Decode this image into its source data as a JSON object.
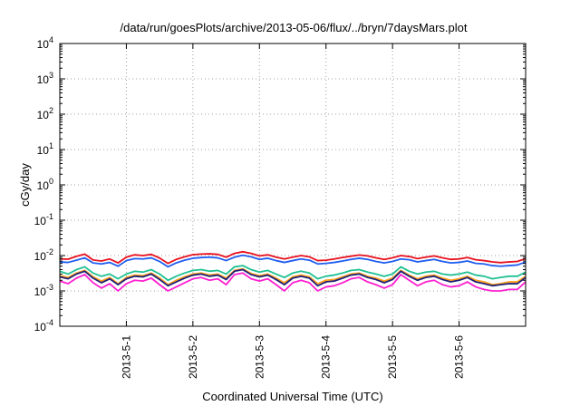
{
  "chart_data": {
    "type": "line",
    "title": "/data/run/goesPlots/archive/2013-05-06/flux/../bryn/7daysMars.plot",
    "xlabel": "Coordinated Universal Time (UTC)",
    "ylabel": "cGy/day",
    "y_scale": "log",
    "ylim": [
      0.0001,
      10000
    ],
    "xlim": [
      "2013-04-30T00:00",
      "2013-05-07T00:00"
    ],
    "grid": true,
    "legend": "none",
    "y_ticks": [
      {
        "base": "10",
        "exp": "-4"
      },
      {
        "base": "10",
        "exp": "-3"
      },
      {
        "base": "10",
        "exp": "-2"
      },
      {
        "base": "10",
        "exp": "-1"
      },
      {
        "base": "10",
        "exp": "0"
      },
      {
        "base": "10",
        "exp": "1"
      },
      {
        "base": "10",
        "exp": "2"
      },
      {
        "base": "10",
        "exp": "3"
      },
      {
        "base": "10",
        "exp": "4"
      }
    ],
    "x_ticks": [
      "2013-5-1",
      "2013-5-2",
      "2013-5-3",
      "2013-5-4",
      "2013-5-5",
      "2013-5-6"
    ],
    "x": [
      "2013-04-30T00:00",
      "2013-04-30T03:00",
      "2013-04-30T06:00",
      "2013-04-30T09:00",
      "2013-04-30T12:00",
      "2013-04-30T15:00",
      "2013-04-30T18:00",
      "2013-04-30T21:00",
      "2013-05-01T00:00",
      "2013-05-01T03:00",
      "2013-05-01T06:00",
      "2013-05-01T09:00",
      "2013-05-01T12:00",
      "2013-05-01T15:00",
      "2013-05-01T18:00",
      "2013-05-01T21:00",
      "2013-05-02T00:00",
      "2013-05-02T03:00",
      "2013-05-02T06:00",
      "2013-05-02T09:00",
      "2013-05-02T12:00",
      "2013-05-02T15:00",
      "2013-05-02T18:00",
      "2013-05-02T21:00",
      "2013-05-03T00:00",
      "2013-05-03T03:00",
      "2013-05-03T06:00",
      "2013-05-03T09:00",
      "2013-05-03T12:00",
      "2013-05-03T15:00",
      "2013-05-03T18:00",
      "2013-05-03T21:00",
      "2013-05-04T00:00",
      "2013-05-04T03:00",
      "2013-05-04T06:00",
      "2013-05-04T09:00",
      "2013-05-04T12:00",
      "2013-05-04T15:00",
      "2013-05-04T18:00",
      "2013-05-04T21:00",
      "2013-05-05T00:00",
      "2013-05-05T03:00",
      "2013-05-05T06:00",
      "2013-05-05T09:00",
      "2013-05-05T12:00",
      "2013-05-05T15:00",
      "2013-05-05T18:00",
      "2013-05-05T21:00",
      "2013-05-06T00:00",
      "2013-05-06T03:00",
      "2013-05-06T06:00",
      "2013-05-06T09:00",
      "2013-05-06T12:00",
      "2013-05-06T15:00",
      "2013-05-06T18:00",
      "2013-05-06T21:00",
      "2013-05-07T00:00"
    ],
    "series": [
      {
        "color": "#e8111e",
        "values": [
          0.008,
          0.0079,
          0.0095,
          0.011,
          0.0075,
          0.007,
          0.008,
          0.0062,
          0.009,
          0.0105,
          0.01,
          0.0108,
          0.0085,
          0.006,
          0.0078,
          0.0092,
          0.0106,
          0.011,
          0.0112,
          0.0108,
          0.009,
          0.0115,
          0.0128,
          0.0115,
          0.0098,
          0.0105,
          0.009,
          0.008,
          0.009,
          0.01,
          0.0092,
          0.0072,
          0.0074,
          0.008,
          0.0088,
          0.0096,
          0.0104,
          0.0098,
          0.0086,
          0.0078,
          0.0086,
          0.01,
          0.0094,
          0.0082,
          0.009,
          0.0098,
          0.0086,
          0.0078,
          0.008,
          0.0088,
          0.0076,
          0.0072,
          0.0066,
          0.0063,
          0.0066,
          0.0068,
          0.0082
        ]
      },
      {
        "color": "#1f5ef0",
        "values": [
          0.0066,
          0.0064,
          0.0074,
          0.0086,
          0.0062,
          0.0058,
          0.0064,
          0.005,
          0.0072,
          0.0082,
          0.008,
          0.0086,
          0.0068,
          0.0048,
          0.0062,
          0.0074,
          0.0084,
          0.0088,
          0.009,
          0.0086,
          0.0072,
          0.009,
          0.0102,
          0.0092,
          0.0078,
          0.0084,
          0.0072,
          0.0064,
          0.0072,
          0.008,
          0.0074,
          0.0058,
          0.006,
          0.0064,
          0.007,
          0.0078,
          0.0084,
          0.0078,
          0.0068,
          0.0062,
          0.0068,
          0.008,
          0.0076,
          0.0066,
          0.0072,
          0.0078,
          0.0068,
          0.0062,
          0.0064,
          0.007,
          0.006,
          0.0058,
          0.0052,
          0.005,
          0.0052,
          0.0054,
          0.0066
        ]
      },
      {
        "color": "#1fc093",
        "values": [
          0.0036,
          0.003,
          0.004,
          0.0048,
          0.0032,
          0.0026,
          0.003,
          0.0022,
          0.003,
          0.0036,
          0.0034,
          0.004,
          0.003,
          0.002,
          0.0026,
          0.0032,
          0.0038,
          0.004,
          0.0036,
          0.0038,
          0.003,
          0.0048,
          0.0052,
          0.004,
          0.0034,
          0.0038,
          0.003,
          0.0024,
          0.0032,
          0.0036,
          0.0032,
          0.0022,
          0.0026,
          0.0028,
          0.0032,
          0.0038,
          0.004,
          0.0034,
          0.003,
          0.0026,
          0.003,
          0.0048,
          0.0036,
          0.003,
          0.0034,
          0.0036,
          0.003,
          0.0028,
          0.003,
          0.0034,
          0.0028,
          0.0026,
          0.0022,
          0.0024,
          0.0026,
          0.0026,
          0.0034
        ]
      },
      {
        "color": "#ffa017",
        "values": [
          0.0027,
          0.0024,
          0.0032,
          0.0038,
          0.0025,
          0.0019,
          0.0024,
          0.0016,
          0.0024,
          0.0028,
          0.0027,
          0.0032,
          0.0023,
          0.0015,
          0.002,
          0.0025,
          0.003,
          0.0032,
          0.0028,
          0.003,
          0.0023,
          0.0038,
          0.0042,
          0.0031,
          0.0027,
          0.003,
          0.0023,
          0.0017,
          0.0025,
          0.0028,
          0.0025,
          0.0016,
          0.002,
          0.0021,
          0.0025,
          0.003,
          0.0032,
          0.0026,
          0.0023,
          0.0019,
          0.0023,
          0.0038,
          0.0028,
          0.0022,
          0.0026,
          0.0028,
          0.0023,
          0.002,
          0.0022,
          0.0026,
          0.002,
          0.0018,
          0.0015,
          0.0016,
          0.0018,
          0.0018,
          0.0026
        ]
      },
      {
        "color": "#20207a",
        "values": [
          0.0025,
          0.0022,
          0.003,
          0.0036,
          0.0023,
          0.0017,
          0.0022,
          0.0015,
          0.0022,
          0.0026,
          0.0025,
          0.003,
          0.0021,
          0.0014,
          0.0018,
          0.0023,
          0.0028,
          0.003,
          0.0026,
          0.0028,
          0.0021,
          0.0036,
          0.004,
          0.0029,
          0.0025,
          0.0028,
          0.0021,
          0.0015,
          0.0023,
          0.0026,
          0.0023,
          0.0014,
          0.0018,
          0.0019,
          0.0023,
          0.0028,
          0.003,
          0.0024,
          0.0021,
          0.0017,
          0.0021,
          0.0036,
          0.0026,
          0.002,
          0.0024,
          0.0026,
          0.0021,
          0.0018,
          0.002,
          0.0024,
          0.0018,
          0.0016,
          0.0014,
          0.0015,
          0.0016,
          0.0016,
          0.0024
        ]
      },
      {
        "color": "#ff1fd0",
        "values": [
          0.0019,
          0.0016,
          0.0023,
          0.0029,
          0.0017,
          0.0012,
          0.0016,
          0.001,
          0.0016,
          0.002,
          0.0019,
          0.0023,
          0.0015,
          0.001,
          0.0013,
          0.0017,
          0.0022,
          0.0024,
          0.002,
          0.0022,
          0.0015,
          0.0029,
          0.0032,
          0.0022,
          0.0019,
          0.0022,
          0.0015,
          0.001,
          0.0017,
          0.002,
          0.0017,
          0.001,
          0.0013,
          0.0014,
          0.0017,
          0.0022,
          0.0024,
          0.0018,
          0.0015,
          0.0012,
          0.0015,
          0.0029,
          0.002,
          0.0014,
          0.0018,
          0.002,
          0.0015,
          0.0013,
          0.0014,
          0.0018,
          0.0013,
          0.0011,
          0.001,
          0.001,
          0.0011,
          0.0011,
          0.0018
        ]
      }
    ]
  }
}
